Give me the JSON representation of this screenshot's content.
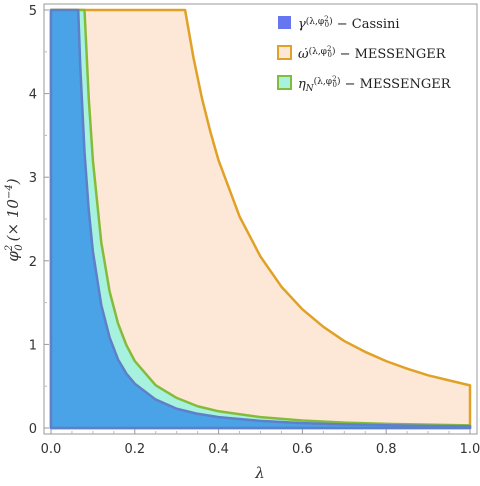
{
  "chart_data": {
    "type": "area",
    "xlabel": "λ",
    "ylabel_main": "φ",
    "ylabel_sup": "2",
    "ylabel_sub": "0",
    "ylabel_scale": "(× 10",
    "ylabel_scale_exp": "−4",
    "ylabel_close": ")",
    "xlim": [
      0,
      1
    ],
    "ylim": [
      0,
      5
    ],
    "x_ticks": [
      0.0,
      0.2,
      0.4,
      0.6,
      0.8,
      1.0
    ],
    "x_tick_labels": [
      "0.0",
      "0.2",
      "0.4",
      "0.6",
      "0.8",
      "1.0"
    ],
    "y_ticks": [
      0,
      1,
      2,
      3,
      4,
      5
    ],
    "y_tick_labels": [
      "0",
      "1",
      "2",
      "3",
      "4",
      "5"
    ],
    "grid": false,
    "legend_position": "top-right",
    "series": [
      {
        "key": "omega",
        "name_symbol": "ω̇",
        "name_args": "(λ,φ",
        "name_args_sup": "2",
        "name_args_sub": "0",
        "name_args_close": ")",
        "name_suffix": "− MESSENGER",
        "fill": "#fde8d7",
        "stroke": "#e0a126",
        "x": [
          0.0,
          0.32,
          0.34,
          0.36,
          0.38,
          0.4,
          0.45,
          0.5,
          0.55,
          0.6,
          0.65,
          0.7,
          0.75,
          0.8,
          0.85,
          0.9,
          0.95,
          1.0
        ],
        "y": [
          5.0,
          5.0,
          4.43,
          3.95,
          3.55,
          3.2,
          2.53,
          2.05,
          1.69,
          1.42,
          1.21,
          1.04,
          0.91,
          0.8,
          0.71,
          0.63,
          0.57,
          0.51
        ]
      },
      {
        "key": "eta",
        "name_symbol": "η",
        "name_symbol_sub": "N",
        "name_args": "(λ,φ",
        "name_args_sup": "2",
        "name_args_sub": "0",
        "name_args_close": ")",
        "name_suffix": "− MESSENGER",
        "fill": "#a6f2df",
        "stroke": "#86bb3a",
        "x": [
          0.0,
          0.08,
          0.09,
          0.1,
          0.12,
          0.14,
          0.16,
          0.18,
          0.2,
          0.25,
          0.3,
          0.35,
          0.4,
          0.5,
          0.6,
          0.7,
          0.8,
          0.9,
          1.0
        ],
        "y": [
          5.0,
          5.0,
          3.95,
          3.2,
          2.22,
          1.63,
          1.25,
          0.99,
          0.8,
          0.51,
          0.36,
          0.26,
          0.2,
          0.13,
          0.09,
          0.065,
          0.05,
          0.04,
          0.032
        ]
      },
      {
        "key": "gamma",
        "name_symbol": "γ",
        "name_args": "(λ,φ",
        "name_args_sup": "2",
        "name_args_sub": "0",
        "name_args_close": ")",
        "name_suffix": "− Cassini",
        "fill": "#4aa3e6",
        "stroke": "#5f7fc8",
        "legend_swatch": "#6675f0",
        "x": [
          0.0,
          0.065,
          0.07,
          0.08,
          0.09,
          0.1,
          0.12,
          0.14,
          0.16,
          0.18,
          0.2,
          0.25,
          0.3,
          0.35,
          0.4,
          0.5,
          0.6,
          0.7,
          0.8,
          0.9,
          1.0
        ],
        "y": [
          5.0,
          5.0,
          4.31,
          3.3,
          2.61,
          2.11,
          1.47,
          1.08,
          0.82,
          0.65,
          0.53,
          0.34,
          0.23,
          0.17,
          0.13,
          0.085,
          0.059,
          0.043,
          0.033,
          0.026,
          0.021
        ]
      }
    ],
    "legend_order": [
      "gamma",
      "omega",
      "eta"
    ]
  }
}
